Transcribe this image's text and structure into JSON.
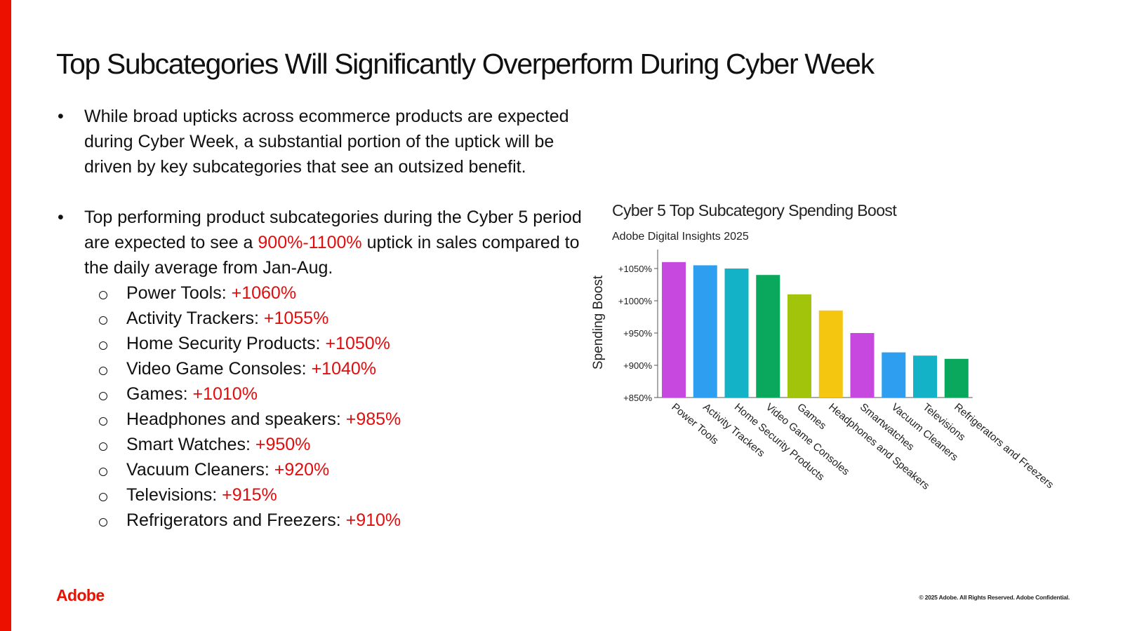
{
  "slide": {
    "title": "Top Subcategories Will Significantly Overperform During Cyber Week",
    "accent_color": "#eb1000",
    "highlight_color": "#e30c0c"
  },
  "bullets": [
    {
      "marker": "•",
      "text": "While broad upticks across ecommerce products are expected during Cyber Week, a substantial portion of the uptick will be driven by key subcategories that see an outsized benefit."
    },
    {
      "marker": "•",
      "text_before": "Top performing product subcategories during the Cyber 5 period are expected to see a ",
      "highlight": "900%-1100%",
      "text_after": " uptick in sales compared to the daily average from Jan-Aug."
    }
  ],
  "subcategories": [
    {
      "label": "Power Tools: ",
      "value": "+1060%"
    },
    {
      "label": "Activity Trackers: ",
      "value": "+1055%"
    },
    {
      "label": "Home Security Products: ",
      "value": "+1050%"
    },
    {
      "label": "Video Game Consoles: ",
      "value": "+1040%"
    },
    {
      "label": "Games: ",
      "value": "+1010%"
    },
    {
      "label": "Headphones and speakers: ",
      "value": "+985%"
    },
    {
      "label": "Smart Watches: ",
      "value": "+950%"
    },
    {
      "label": "Vacuum Cleaners: ",
      "value": "+920%"
    },
    {
      "label": "Televisions: ",
      "value": "+915%"
    },
    {
      "label": "Refrigerators and Freezers: ",
      "value": "+910%"
    }
  ],
  "chart_data": {
    "type": "bar",
    "title": "Cyber 5 Top Subcategory Spending Boost",
    "subtitle": "Adobe Digital Insights 2025",
    "xlabel": "",
    "ylabel": "Spending Boost",
    "ylim": [
      850,
      1075
    ],
    "yticks": [
      850,
      900,
      950,
      1000,
      1050
    ],
    "ytick_labels": [
      "+850%",
      "+900%",
      "+950%",
      "+1000%",
      "+1050%"
    ],
    "grid": false,
    "categories": [
      "Power Tools",
      "Activity Trackers",
      "Home Security Products",
      "Video Game Consoles",
      "Games",
      "Headphones and Speakers",
      "Smartwatches",
      "Vacuum Cleaners",
      "Televisions",
      "Refrigerators and Freezers"
    ],
    "values": [
      1060,
      1055,
      1050,
      1040,
      1010,
      985,
      950,
      920,
      915,
      910
    ],
    "colors": [
      "#c748df",
      "#2e9ff0",
      "#14b2c6",
      "#0aa85d",
      "#a2c40b",
      "#f4c60f",
      "#c748df",
      "#2e9ff0",
      "#14b2c6",
      "#0aa85d"
    ]
  },
  "footer": {
    "brand": "Adobe",
    "copyright": "© 2025 Adobe. All Rights Reserved. Adobe Confidential."
  }
}
